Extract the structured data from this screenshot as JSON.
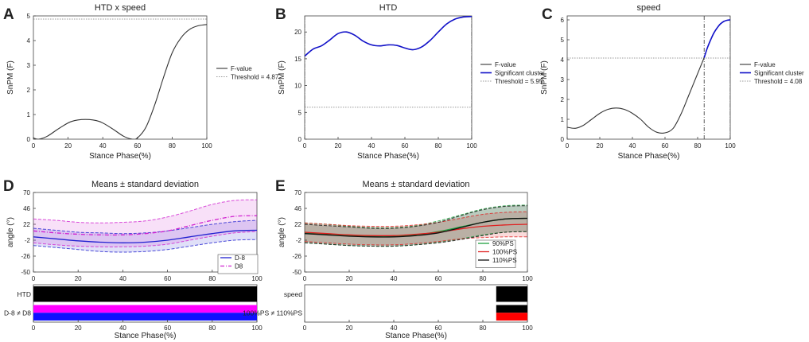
{
  "chart_data": [
    {
      "panel": "A",
      "type": "line",
      "title": "HTD x speed",
      "xlabel": "Stance Phase(%)",
      "ylabel": "SnPM (F)",
      "xlim": [
        0,
        100
      ],
      "ylim": [
        0,
        5
      ],
      "xticks": [
        0,
        20,
        40,
        60,
        80,
        100
      ],
      "yticks": [
        0,
        1,
        2,
        3,
        4,
        5
      ],
      "threshold": 4.87,
      "series": [
        {
          "name": "F-value",
          "color": "#333333",
          "x": [
            0,
            3,
            8,
            15,
            22,
            30,
            38,
            45,
            52,
            57,
            60,
            65,
            70,
            75,
            80,
            85,
            90,
            95,
            100
          ],
          "y": [
            0.05,
            0.0,
            0.12,
            0.45,
            0.72,
            0.8,
            0.72,
            0.45,
            0.12,
            0.0,
            0.05,
            0.5,
            1.4,
            2.5,
            3.5,
            4.1,
            4.45,
            4.6,
            4.65
          ]
        }
      ],
      "legend": [
        "F-value",
        "Threshold = 4.87"
      ]
    },
    {
      "panel": "B",
      "type": "line",
      "title": "HTD",
      "xlabel": "Stance Phase(%)",
      "ylabel": "SnPM (F)",
      "xlim": [
        0,
        100
      ],
      "ylim": [
        0,
        23
      ],
      "xticks": [
        0,
        20,
        40,
        60,
        80,
        100
      ],
      "yticks": [
        0,
        5,
        10,
        15,
        20
      ],
      "threshold": 5.95,
      "cluster_x": [
        0,
        100
      ],
      "series": [
        {
          "name": "Significant cluster",
          "color": "#1010c8",
          "x": [
            0,
            5,
            10,
            15,
            20,
            25,
            30,
            35,
            40,
            45,
            50,
            55,
            60,
            65,
            70,
            75,
            80,
            85,
            90,
            95,
            100
          ],
          "y": [
            15.5,
            16.8,
            17.4,
            18.5,
            19.7,
            20.0,
            19.4,
            18.3,
            17.6,
            17.4,
            17.6,
            17.5,
            17.0,
            16.7,
            17.2,
            18.4,
            20.0,
            21.5,
            22.4,
            22.8,
            22.9
          ]
        }
      ],
      "legend": [
        "F-value",
        "Significant cluster",
        "Threshold = 5.95"
      ]
    },
    {
      "panel": "C",
      "type": "line",
      "title": "speed",
      "xlabel": "Stance Phase(%)",
      "ylabel": "SnPM (F)",
      "xlim": [
        0,
        100
      ],
      "ylim": [
        0,
        6.2
      ],
      "xticks": [
        0,
        20,
        40,
        60,
        80,
        100
      ],
      "yticks": [
        0,
        1,
        2,
        3,
        4,
        5,
        6
      ],
      "threshold": 4.08,
      "cluster_x": [
        84,
        100
      ],
      "series": [
        {
          "name": "F-value",
          "color": "#333333",
          "x": [
            0,
            5,
            10,
            15,
            20,
            25,
            30,
            35,
            40,
            45,
            50,
            55,
            60,
            65,
            70,
            75,
            80,
            84
          ],
          "y": [
            0.6,
            0.55,
            0.7,
            1.0,
            1.3,
            1.5,
            1.57,
            1.5,
            1.3,
            1.0,
            0.6,
            0.35,
            0.32,
            0.55,
            1.3,
            2.3,
            3.3,
            4.1
          ]
        },
        {
          "name": "Significant cluster",
          "color": "#1010c8",
          "x": [
            84,
            86,
            88,
            90,
            92,
            94,
            96,
            98,
            100
          ],
          "y": [
            4.1,
            4.6,
            5.0,
            5.35,
            5.6,
            5.8,
            5.92,
            5.98,
            6.0
          ]
        }
      ],
      "legend": [
        "F-value",
        "Significant cluster",
        "Threshold = 4.08"
      ]
    },
    {
      "panel": "D",
      "type": "line",
      "title": "Means ± standard deviation",
      "xlabel": "Stance Phase(%)",
      "ylabel": "angle (°)",
      "xlim": [
        0,
        100
      ],
      "ylim": [
        -50,
        70
      ],
      "xticks": [
        0,
        20,
        40,
        60,
        80,
        100
      ],
      "yticks": [
        -50,
        -26,
        -2,
        22,
        46,
        70
      ],
      "x": [
        0,
        10,
        20,
        30,
        40,
        50,
        60,
        70,
        80,
        90,
        100
      ],
      "series": [
        {
          "name": "D-8",
          "color": "#2020d0",
          "mean": [
            3,
            0,
            -3,
            -5,
            -6,
            -5,
            -2,
            3,
            8,
            12,
            13
          ],
          "sd_upper": [
            16,
            13,
            10,
            9,
            8,
            9,
            12,
            17,
            22,
            26,
            28
          ],
          "sd_lower": [
            -10,
            -13,
            -16,
            -19,
            -20,
            -19,
            -16,
            -11,
            -6,
            -2,
            -1
          ]
        },
        {
          "name": "D8",
          "color": "#d020d0",
          "mean": [
            12,
            9,
            7,
            6,
            6,
            8,
            12,
            20,
            28,
            34,
            35
          ],
          "sd_upper": [
            30,
            28,
            25,
            24,
            25,
            27,
            33,
            42,
            52,
            58,
            59
          ],
          "sd_lower": [
            -6,
            -9,
            -11,
            -12,
            -12,
            -11,
            -8,
            -2,
            4,
            9,
            11
          ]
        }
      ],
      "legend": [
        "D-8",
        "D8"
      ],
      "sig_rows": [
        {
          "label": "HTD",
          "segments": [
            {
              "x0": 0,
              "x1": 100,
              "colors": [
                "#000000"
              ]
            }
          ]
        },
        {
          "label": "D-8 ≠ D8",
          "segments": [
            {
              "x0": 0,
              "x1": 100,
              "colors": [
                "#ff00ff",
                "#1010ff"
              ]
            }
          ]
        }
      ]
    },
    {
      "panel": "E",
      "type": "line",
      "title": "Means ± standard deviation",
      "xlabel": "Stance Phase(%)",
      "ylabel": "angle (°)",
      "xlim": [
        0,
        100
      ],
      "ylim": [
        -50,
        70
      ],
      "xticks": [
        0,
        20,
        40,
        60,
        80,
        100
      ],
      "yticks": [
        -50,
        -26,
        -2,
        22,
        46,
        70
      ],
      "x": [
        0,
        10,
        20,
        30,
        40,
        50,
        60,
        70,
        80,
        90,
        100
      ],
      "series": [
        {
          "name": "90%PS",
          "color": "#20a040",
          "mean": [
            9,
            7,
            5,
            4,
            4,
            6,
            11,
            18,
            25,
            30,
            31
          ],
          "sd_upper": [
            24,
            22,
            19,
            17,
            17,
            20,
            27,
            36,
            45,
            50,
            51
          ],
          "sd_lower": [
            -6,
            -8,
            -10,
            -11,
            -11,
            -9,
            -5,
            0,
            6,
            10,
            11
          ]
        },
        {
          "name": "100%PS",
          "color": "#e02020",
          "mean": [
            10,
            8,
            6,
            5,
            5,
            7,
            10,
            15,
            19,
            21,
            22
          ],
          "sd_upper": [
            24,
            22,
            20,
            19,
            19,
            21,
            25,
            31,
            37,
            40,
            41
          ],
          "sd_lower": [
            -4,
            -6,
            -8,
            -9,
            -9,
            -7,
            -4,
            0,
            2,
            3,
            3
          ]
        },
        {
          "name": "110%PS",
          "color": "#111111",
          "mean": [
            8,
            6,
            4,
            3,
            3,
            5,
            9,
            17,
            25,
            30,
            31
          ],
          "sd_upper": [
            22,
            20,
            18,
            16,
            16,
            19,
            25,
            35,
            44,
            49,
            50
          ],
          "sd_lower": [
            -6,
            -8,
            -10,
            -11,
            -11,
            -9,
            -6,
            -1,
            5,
            10,
            11
          ]
        }
      ],
      "legend": [
        "90%PS",
        "100%PS",
        "110%PS"
      ],
      "sig_rows": [
        {
          "label": "speed",
          "segments": [
            {
              "x0": 86,
              "x1": 100,
              "colors": [
                "#000000"
              ]
            }
          ]
        },
        {
          "label": "100%PS ≠ 110%PS",
          "segments": [
            {
              "x0": 86,
              "x1": 100,
              "colors": [
                "#000000",
                "#ff0000"
              ]
            }
          ]
        }
      ]
    }
  ]
}
